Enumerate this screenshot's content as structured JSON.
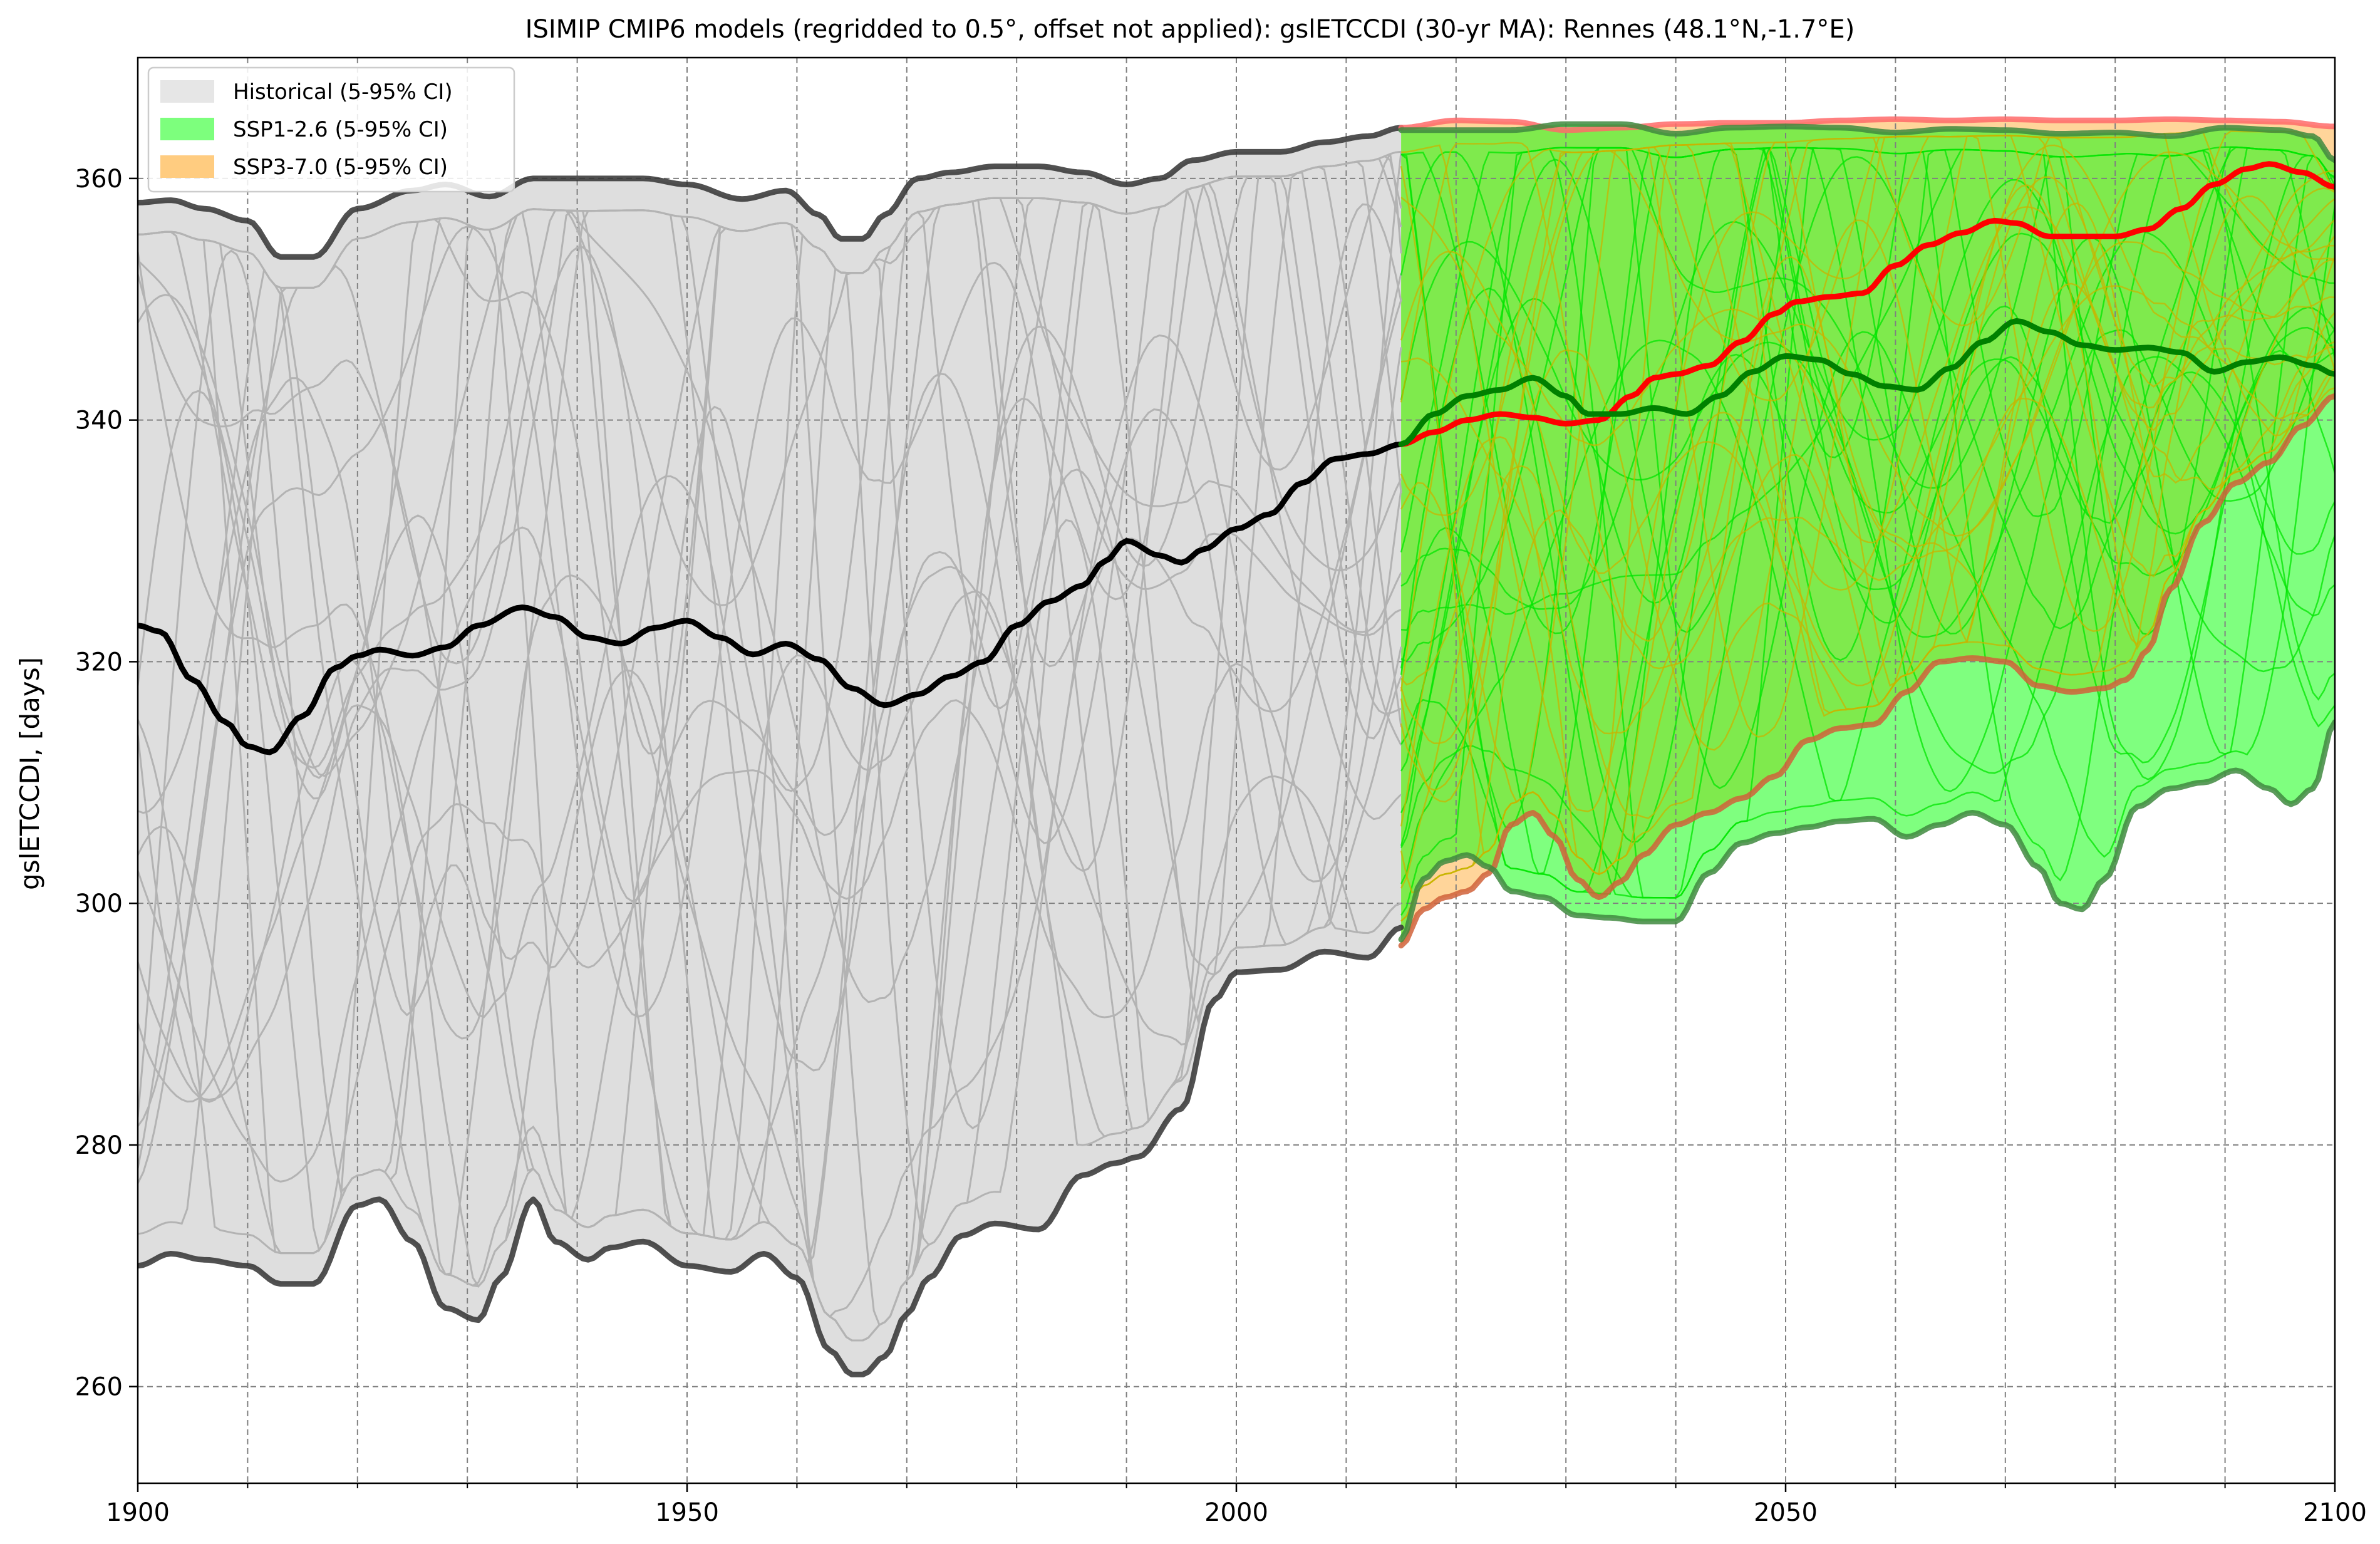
{
  "chart_data": {
    "type": "line",
    "title": "ISIMIP CMIP6 models (regridded to 0.5°, offset not applied): gslETCCDI (30-yr MA): Rennes (48.1°N,-1.7°E)",
    "xlabel": "",
    "ylabel": "gslETCCDI, [days]",
    "xlim": [
      1900,
      2100
    ],
    "ylim": [
      252,
      370
    ],
    "x_ticks": [
      1900,
      1950,
      2000,
      2050,
      2100
    ],
    "x_minor_ticks": [
      1910,
      1920,
      1930,
      1940,
      1960,
      1970,
      1980,
      1990,
      2010,
      2020,
      2030,
      2040,
      2060,
      2070,
      2080,
      2090
    ],
    "y_ticks": [
      260,
      280,
      300,
      320,
      340,
      360
    ],
    "grid": true,
    "legend_position": "upper-left",
    "legend": [
      {
        "label": "Historical (5-95% CI)",
        "color": "#e6e6e6"
      },
      {
        "label": "SSP1-2.6 (5-95% CI)",
        "color": "#7dff7d"
      },
      {
        "label": "SSP3-7.0 (5-95% CI)",
        "color": "#ffcc80"
      }
    ],
    "series": [
      {
        "id": "hist_p95",
        "kind": "bound",
        "color": "#333333",
        "x": [
          1900,
          1903,
          1906,
          1910,
          1913,
          1916,
          1920,
          1925,
          1928,
          1932,
          1936,
          1940,
          1946,
          1950,
          1955,
          1959,
          1962,
          1964,
          1966,
          1968,
          1971,
          1974,
          1978,
          1982,
          1986,
          1990,
          1993,
          1996,
          2000,
          2004,
          2008,
          2012,
          2015
        ],
        "y": [
          358,
          358.2,
          357.5,
          356.5,
          353.5,
          353.5,
          357.5,
          359,
          359.5,
          358.5,
          360,
          360,
          360,
          359.5,
          358.3,
          359,
          357,
          355,
          355,
          357,
          360,
          360.5,
          361,
          361,
          360.5,
          359.5,
          360,
          361.5,
          362.2,
          362.2,
          363,
          363.5,
          364.2
        ]
      },
      {
        "id": "hist_p05",
        "kind": "bound",
        "color": "#333333",
        "x": [
          1900,
          1903,
          1906,
          1910,
          1913,
          1916,
          1920,
          1922,
          1925,
          1928,
          1931,
          1933,
          1936,
          1938,
          1941,
          1943,
          1946,
          1950,
          1954,
          1957,
          1960,
          1963,
          1965,
          1966,
          1968,
          1970,
          1972,
          1975,
          1978,
          1982,
          1986,
          1989,
          1991,
          1995,
          1998,
          2000,
          2004,
          2008,
          2012,
          2015
        ],
        "y": [
          270,
          271,
          270.5,
          270,
          268.5,
          268.5,
          275,
          275.5,
          272,
          266.5,
          265.5,
          269,
          275.5,
          272,
          270.5,
          271.5,
          272,
          270,
          269.5,
          271,
          269,
          263,
          261,
          261,
          262.5,
          266,
          269,
          272.5,
          273.5,
          273,
          277.5,
          278.5,
          279,
          283,
          292,
          294.3,
          294.5,
          296,
          295.5,
          298
        ]
      },
      {
        "id": "hist_median",
        "kind": "median",
        "color": "#000000",
        "x": [
          1900,
          1902,
          1905,
          1908,
          1910,
          1912,
          1915,
          1918,
          1920,
          1922,
          1925,
          1928,
          1931,
          1935,
          1938,
          1941,
          1944,
          1947,
          1950,
          1953,
          1956,
          1959,
          1962,
          1965,
          1968,
          1971,
          1974,
          1977,
          1980,
          1983,
          1986,
          1988,
          1990,
          1993,
          1995,
          1997,
          2000,
          2003,
          2006,
          2009,
          2012,
          2015
        ],
        "y": [
          323,
          322.5,
          318.5,
          315,
          313,
          312.5,
          315.5,
          319.5,
          320.5,
          321,
          320.5,
          321.2,
          323,
          324.5,
          323.7,
          322,
          321.5,
          322.8,
          323.4,
          322,
          320.6,
          321.5,
          320.2,
          317.8,
          316.4,
          317.3,
          318.8,
          320,
          323,
          325,
          326.3,
          328.3,
          330,
          328.8,
          328.2,
          329.3,
          331,
          332.2,
          334.8,
          336.8,
          337.2,
          338
        ]
      },
      {
        "id": "ssp126_median",
        "kind": "median",
        "color": "#008000",
        "x": [
          2015,
          2018,
          2021,
          2024,
          2027,
          2030,
          2032,
          2035,
          2038,
          2041,
          2044,
          2047,
          2050,
          2053,
          2056,
          2059,
          2062,
          2065,
          2068,
          2071,
          2074,
          2077,
          2080,
          2083,
          2086,
          2089,
          2092,
          2095,
          2098,
          2100
        ],
        "y": [
          338,
          340.5,
          342,
          342.5,
          343.5,
          342,
          340.5,
          340.5,
          341,
          340.5,
          342,
          344,
          345.3,
          345,
          343.8,
          342.8,
          342.5,
          344.3,
          346.5,
          348.2,
          347.3,
          346.2,
          345.8,
          346,
          345.6,
          344,
          344.8,
          345.2,
          344.5,
          343.8
        ]
      },
      {
        "id": "ssp370_median",
        "kind": "median",
        "color": "#ff0000",
        "x": [
          2015,
          2018,
          2021,
          2024,
          2027,
          2030,
          2033,
          2036,
          2038,
          2040,
          2043,
          2046,
          2049,
          2051,
          2054,
          2057,
          2060,
          2063,
          2066,
          2069,
          2071,
          2074,
          2077,
          2080,
          2083,
          2086,
          2089,
          2092,
          2094,
          2097,
          2100
        ],
        "y": [
          338,
          339,
          340,
          340.5,
          340.2,
          339.7,
          340,
          342,
          343.5,
          343.8,
          344.5,
          346.5,
          348.8,
          349.8,
          350.2,
          350.5,
          352.8,
          354.5,
          355.5,
          356.5,
          356.3,
          355.2,
          355.2,
          355.2,
          355.8,
          357.5,
          359.5,
          360.8,
          361.2,
          360.5,
          359.3
        ]
      },
      {
        "id": "ssp126_p95",
        "kind": "bound",
        "color": "#3f8a3f",
        "x": [
          2015,
          2020,
          2025,
          2030,
          2035,
          2040,
          2045,
          2050,
          2055,
          2060,
          2065,
          2070,
          2075,
          2080,
          2085,
          2090,
          2095,
          2098,
          2100
        ],
        "y": [
          364,
          364,
          364,
          364.5,
          364.5,
          363.7,
          364.2,
          364.3,
          364.2,
          363.8,
          364.1,
          364,
          363.7,
          363.8,
          363.5,
          364.2,
          364,
          363.5,
          361.5
        ]
      },
      {
        "id": "ssp126_p05",
        "kind": "bound",
        "color": "#3f8a3f",
        "x": [
          2015,
          2017,
          2019,
          2021,
          2023,
          2025,
          2028,
          2031,
          2034,
          2037,
          2040,
          2043,
          2046,
          2049,
          2052,
          2055,
          2058,
          2061,
          2064,
          2067,
          2070,
          2073,
          2075,
          2077,
          2079,
          2082,
          2085,
          2088,
          2091,
          2094,
          2096,
          2098,
          2100
        ],
        "y": [
          297,
          302,
          303.5,
          304,
          303,
          301,
          300.5,
          299,
          298.8,
          298.5,
          298.5,
          302.5,
          305,
          305.8,
          306.3,
          306.8,
          307,
          305.5,
          306.5,
          307.5,
          306.5,
          303,
          300,
          299.5,
          302,
          308,
          309.5,
          310,
          311,
          309.5,
          308.2,
          309.5,
          315
        ]
      },
      {
        "id": "ssp370_p95",
        "kind": "bound",
        "color": "#ff6a6a",
        "x": [
          2015,
          2020,
          2025,
          2030,
          2035,
          2040,
          2045,
          2050,
          2055,
          2060,
          2065,
          2070,
          2075,
          2080,
          2085,
          2090,
          2095,
          2100
        ],
        "y": [
          364.2,
          364.8,
          364.7,
          364,
          364.2,
          364.5,
          364.6,
          364.6,
          364.8,
          364.9,
          364.8,
          364.9,
          364.8,
          364.8,
          364.9,
          364.8,
          364.7,
          364.3
        ]
      },
      {
        "id": "ssp370_p05",
        "kind": "bound",
        "color": "#d0623a",
        "x": [
          2015,
          2017,
          2019,
          2021,
          2023,
          2025,
          2027,
          2029,
          2031,
          2033,
          2035,
          2037,
          2040,
          2043,
          2046,
          2049,
          2052,
          2055,
          2058,
          2061,
          2064,
          2067,
          2070,
          2073,
          2076,
          2079,
          2081,
          2083,
          2085,
          2088,
          2091,
          2094,
          2097,
          2100
        ],
        "y": [
          296.5,
          299.5,
          300.5,
          301,
          302.5,
          306.5,
          307.5,
          305.5,
          302,
          300.5,
          301.8,
          304,
          306.5,
          307.5,
          308.7,
          310.5,
          313.5,
          314.5,
          314.8,
          317.5,
          320,
          320.3,
          320,
          318,
          317.5,
          317.8,
          318.5,
          321,
          326,
          331.5,
          334.8,
          336.5,
          339.5,
          342
        ]
      }
    ]
  }
}
